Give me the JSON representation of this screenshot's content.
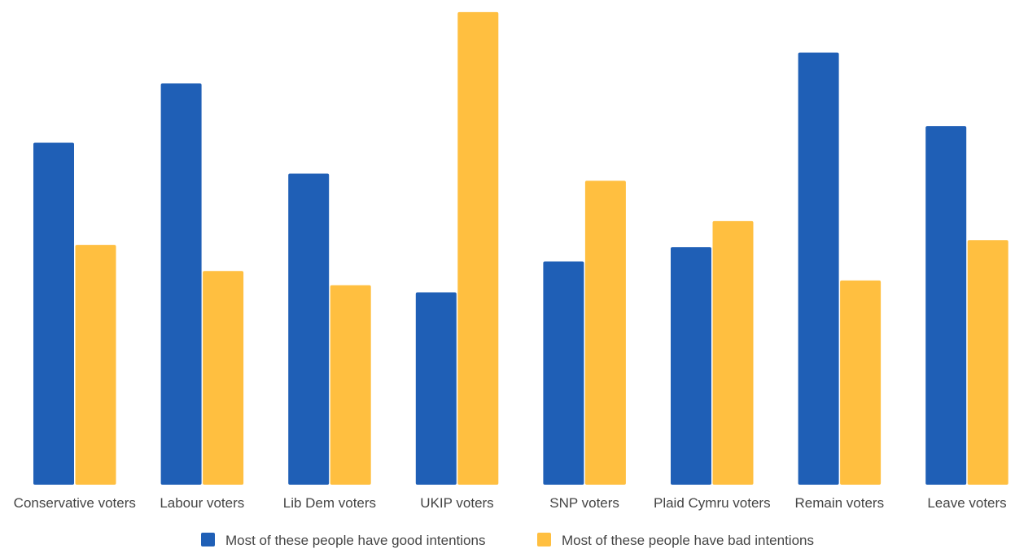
{
  "chart_data": {
    "type": "bar",
    "title": "",
    "xlabel": "",
    "ylabel": "",
    "ylim": [
      0,
      100
    ],
    "grid": false,
    "legend_placement": "bottom",
    "categories": [
      "Conservative voters",
      "Labour voters",
      "Lib Dem voters",
      "UKIP voters",
      "SNP voters",
      "Plaid Cymru voters",
      "Remain voters",
      "Leave voters"
    ],
    "series": [
      {
        "name": "Most of these people have good intentions",
        "color": "#1f5fb6",
        "values": [
          72,
          84.5,
          65.5,
          40.5,
          47,
          50,
          91,
          75.5
        ]
      },
      {
        "name": "Most of these people have bad intentions",
        "color": "#ffbf40",
        "values": [
          50.5,
          45,
          42,
          99.5,
          64,
          55.5,
          43,
          51.5
        ]
      }
    ]
  }
}
